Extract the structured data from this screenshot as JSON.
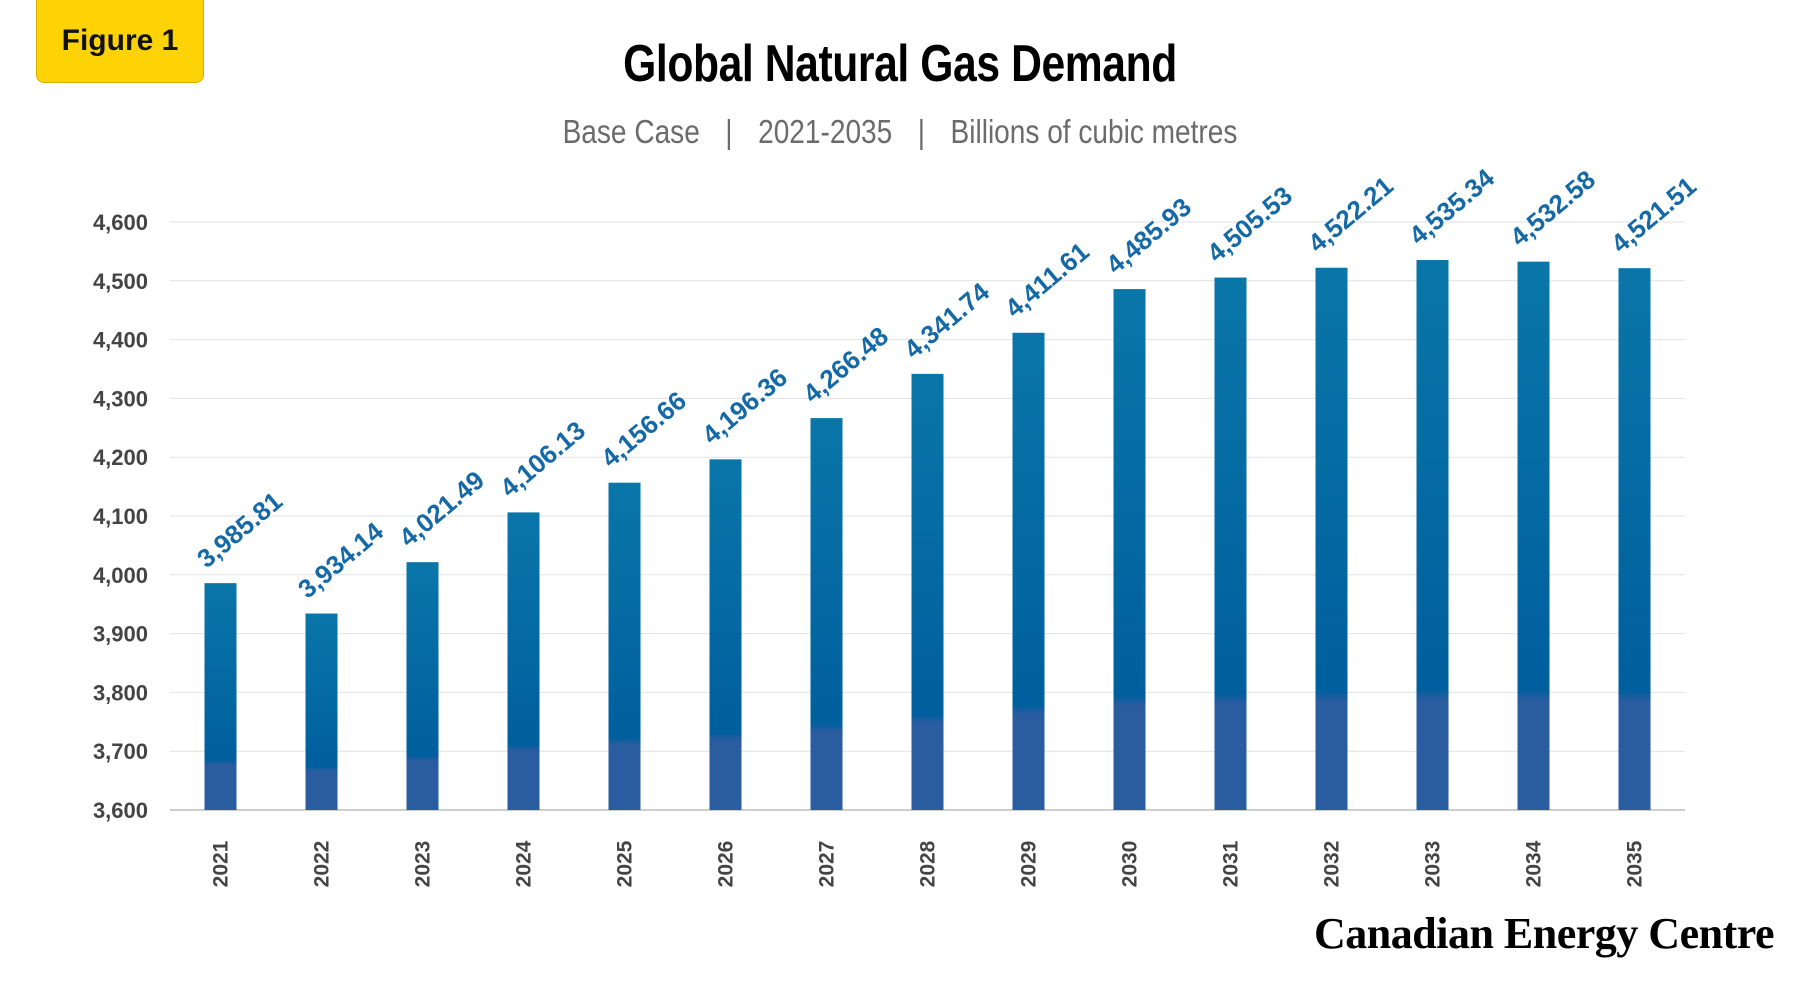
{
  "badge": {
    "label": "Figure 1"
  },
  "header": {
    "title": "Global Natural Gas Demand",
    "subtitle_parts": [
      "Base Case",
      "2021-2035",
      "Billions of cubic metres"
    ],
    "separator": "|"
  },
  "brand": {
    "name": "Canadian Energy Centre"
  },
  "colors": {
    "bar_top": "#0a76a8",
    "bar_mid": "#005f9e",
    "bar_bottom": "#2a5ca0",
    "data_label": "#1469a6",
    "axis_text": "#444444",
    "grid": "#e2e2e2",
    "badge": "#fdd306"
  },
  "chart_data": {
    "type": "bar",
    "title": "Global Natural Gas Demand",
    "subtitle": "Base Case | 2021-2035 | Billions of cubic metres",
    "xlabel": "",
    "ylabel": "",
    "categories": [
      "2021",
      "2022",
      "2023",
      "2024",
      "2025",
      "2026",
      "2027",
      "2028",
      "2029",
      "2030",
      "2031",
      "2032",
      "2033",
      "2034",
      "2035"
    ],
    "values": [
      3985.81,
      3934.14,
      4021.49,
      4106.13,
      4156.66,
      4196.36,
      4266.48,
      4341.74,
      4411.61,
      4485.93,
      4505.53,
      4522.21,
      4535.34,
      4532.58,
      4521.51
    ],
    "value_labels": [
      "3,985.81",
      "3,934.14",
      "4,021.49",
      "4,106.13",
      "4,156.66",
      "4,196.36",
      "4,266.48",
      "4,341.74",
      "4,411.61",
      "4,485.93",
      "4,505.53",
      "4,522.21",
      "4,535.34",
      "4,532.58",
      "4,521.51"
    ],
    "ylim": [
      3600,
      4600
    ],
    "yticks": [
      3600,
      3700,
      3800,
      3900,
      4000,
      4100,
      4200,
      4300,
      4400,
      4500,
      4600
    ],
    "ytick_labels": [
      "3,600",
      "3,700",
      "3,800",
      "3,900",
      "4,000",
      "4,100",
      "4,200",
      "4,300",
      "4,400",
      "4,500",
      "4,600"
    ],
    "grid": true,
    "legend": "none"
  }
}
